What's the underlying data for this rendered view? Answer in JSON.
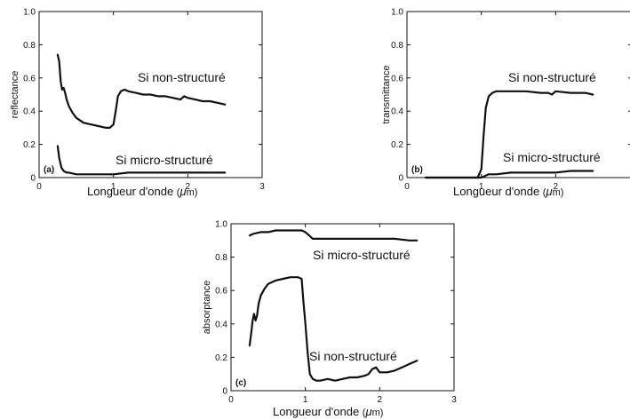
{
  "chart_data": [
    {
      "type": "line",
      "panel_label": "(a)",
      "xlabel": "Longueur d'onde",
      "xunit_symbol": "μ",
      "xunit_rest": "m",
      "ylabel": "reflectance",
      "xlim": [
        0,
        3
      ],
      "ylim": [
        0,
        1
      ],
      "xticks": [
        "0",
        "1",
        "2",
        "3"
      ],
      "yticks": [
        "0",
        "0.2",
        "0.4",
        "0.6",
        "0.8",
        "1.0"
      ],
      "grid": false,
      "series": [
        {
          "name": "Si non-structuré",
          "x": [
            0.25,
            0.27,
            0.29,
            0.31,
            0.33,
            0.35,
            0.37,
            0.4,
            0.45,
            0.5,
            0.6,
            0.7,
            0.8,
            0.9,
            0.95,
            1.0,
            1.03,
            1.06,
            1.1,
            1.15,
            1.2,
            1.3,
            1.4,
            1.5,
            1.6,
            1.7,
            1.8,
            1.9,
            1.95,
            2.0,
            2.1,
            2.2,
            2.3,
            2.4,
            2.5
          ],
          "y": [
            0.74,
            0.7,
            0.58,
            0.53,
            0.54,
            0.51,
            0.47,
            0.43,
            0.39,
            0.36,
            0.33,
            0.32,
            0.31,
            0.3,
            0.3,
            0.32,
            0.4,
            0.49,
            0.52,
            0.53,
            0.52,
            0.51,
            0.5,
            0.5,
            0.49,
            0.49,
            0.48,
            0.47,
            0.49,
            0.48,
            0.47,
            0.46,
            0.46,
            0.45,
            0.44
          ]
        },
        {
          "name": "Si micro-structuré",
          "x": [
            0.25,
            0.27,
            0.3,
            0.33,
            0.37,
            0.4,
            0.5,
            0.6,
            0.8,
            1.0,
            1.2,
            1.4,
            1.6,
            1.8,
            2.0,
            2.2,
            2.4,
            2.5
          ],
          "y": [
            0.19,
            0.12,
            0.06,
            0.04,
            0.03,
            0.03,
            0.02,
            0.02,
            0.02,
            0.02,
            0.03,
            0.03,
            0.03,
            0.03,
            0.03,
            0.03,
            0.03,
            0.03
          ]
        }
      ]
    },
    {
      "type": "line",
      "panel_label": "(b)",
      "xlabel": "Longueur d'onde",
      "xunit_symbol": "μ",
      "xunit_rest": "m",
      "ylabel": "transmittance",
      "xlim": [
        0,
        3
      ],
      "ylim": [
        0,
        1
      ],
      "xticks": [
        "0",
        "1",
        "2"
      ],
      "yticks": [
        "0",
        "0.2",
        "0.4",
        "0.6",
        "0.8",
        "1.0"
      ],
      "grid": false,
      "series": [
        {
          "name": "Si non-structuré",
          "x": [
            0.25,
            0.5,
            0.8,
            0.95,
            1.0,
            1.03,
            1.06,
            1.1,
            1.15,
            1.2,
            1.4,
            1.6,
            1.8,
            1.9,
            1.95,
            2.0,
            2.2,
            2.4,
            2.5
          ],
          "y": [
            0.0,
            0.0,
            0.0,
            0.0,
            0.05,
            0.25,
            0.42,
            0.49,
            0.51,
            0.52,
            0.52,
            0.52,
            0.51,
            0.51,
            0.5,
            0.52,
            0.51,
            0.51,
            0.5
          ]
        },
        {
          "name": "Si micro-structuré",
          "x": [
            0.25,
            0.5,
            0.8,
            1.0,
            1.05,
            1.1,
            1.2,
            1.4,
            1.6,
            1.8,
            2.0,
            2.2,
            2.4,
            2.5
          ],
          "y": [
            0.0,
            0.0,
            0.0,
            0.0,
            0.01,
            0.02,
            0.02,
            0.03,
            0.03,
            0.03,
            0.03,
            0.04,
            0.04,
            0.04
          ]
        }
      ]
    },
    {
      "type": "line",
      "panel_label": "(c)",
      "xlabel": "Longueur d'onde",
      "xunit_symbol": "μ",
      "xunit_rest": "m",
      "ylabel": "absorptance",
      "xlim": [
        0,
        3
      ],
      "ylim": [
        0,
        1
      ],
      "xticks": [
        "0",
        "1",
        "2",
        "3"
      ],
      "yticks": [
        "0",
        "0.2",
        "0.4",
        "0.6",
        "0.8",
        "1.0"
      ],
      "grid": false,
      "series": [
        {
          "name": "Si micro-structuré",
          "x": [
            0.25,
            0.3,
            0.4,
            0.5,
            0.6,
            0.7,
            0.8,
            0.9,
            0.95,
            1.0,
            1.05,
            1.1,
            1.2,
            1.4,
            1.6,
            1.8,
            2.0,
            2.2,
            2.4,
            2.5
          ],
          "y": [
            0.93,
            0.94,
            0.95,
            0.95,
            0.96,
            0.96,
            0.96,
            0.96,
            0.96,
            0.95,
            0.93,
            0.91,
            0.91,
            0.91,
            0.91,
            0.91,
            0.91,
            0.91,
            0.9,
            0.9
          ]
        },
        {
          "name": "Si non-structuré",
          "x": [
            0.25,
            0.27,
            0.29,
            0.31,
            0.33,
            0.35,
            0.37,
            0.4,
            0.45,
            0.5,
            0.6,
            0.7,
            0.8,
            0.9,
            0.95,
            0.97,
            1.0,
            1.03,
            1.06,
            1.1,
            1.15,
            1.2,
            1.3,
            1.4,
            1.5,
            1.6,
            1.7,
            1.8,
            1.85,
            1.9,
            1.95,
            2.0,
            2.1,
            2.2,
            2.3,
            2.4,
            2.5
          ],
          "y": [
            0.27,
            0.34,
            0.42,
            0.46,
            0.42,
            0.45,
            0.52,
            0.57,
            0.61,
            0.64,
            0.66,
            0.67,
            0.68,
            0.68,
            0.67,
            0.55,
            0.4,
            0.23,
            0.1,
            0.07,
            0.06,
            0.06,
            0.07,
            0.06,
            0.07,
            0.08,
            0.08,
            0.09,
            0.1,
            0.13,
            0.14,
            0.11,
            0.11,
            0.12,
            0.14,
            0.16,
            0.18
          ]
        }
      ]
    }
  ],
  "annotations": [
    {
      "panel": 0,
      "text": "Si non-structuré"
    },
    {
      "panel": 0,
      "text": "Si micro-structuré"
    },
    {
      "panel": 1,
      "text": "Si non-structuré"
    },
    {
      "panel": 1,
      "text": "Si micro-structuré"
    },
    {
      "panel": 2,
      "text": "Si micro-structuré"
    },
    {
      "panel": 2,
      "text": "Si non-structuré"
    }
  ]
}
